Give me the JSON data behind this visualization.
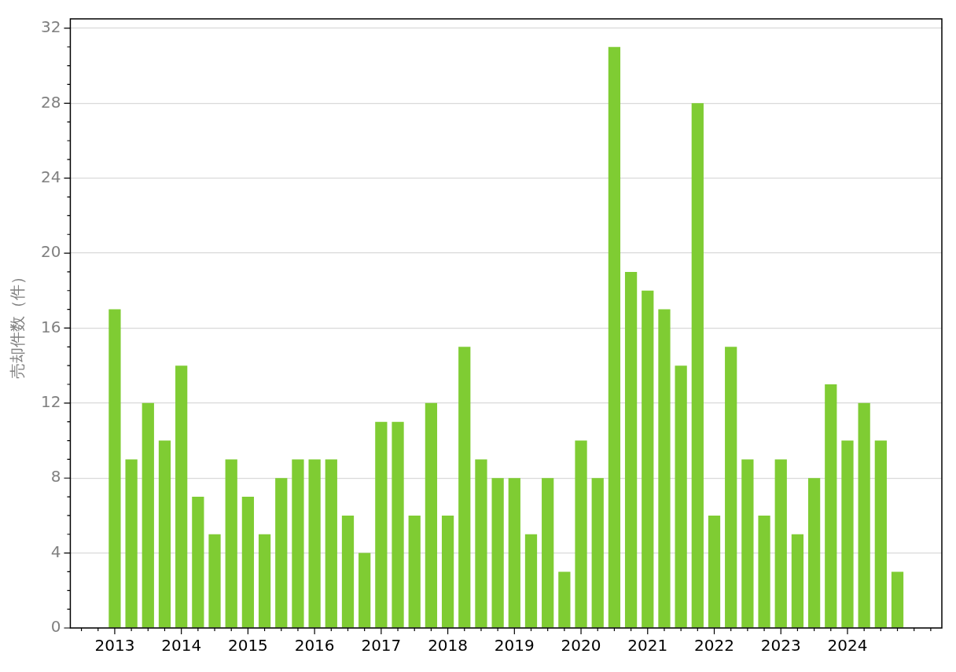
{
  "chart_data": {
    "type": "bar",
    "ylabel": "売却件数（件）",
    "color": "#7fcc33",
    "x": [
      "2013-01",
      "2013-04",
      "2013-07",
      "2013-10",
      "2014-01",
      "2014-04",
      "2014-07",
      "2014-10",
      "2015-01",
      "2015-04",
      "2015-07",
      "2015-10",
      "2016-01",
      "2016-04",
      "2016-07",
      "2016-10",
      "2017-01",
      "2017-04",
      "2017-07",
      "2017-10",
      "2018-01",
      "2018-04",
      "2018-07",
      "2018-10",
      "2019-01",
      "2019-04",
      "2019-07",
      "2019-10",
      "2020-01",
      "2020-04",
      "2020-07",
      "2020-10",
      "2021-01",
      "2021-04",
      "2021-07",
      "2021-10",
      "2022-01",
      "2022-04",
      "2022-07",
      "2022-10",
      "2023-01",
      "2023-04",
      "2023-07",
      "2023-10",
      "2024-01",
      "2024-04",
      "2024-07",
      "2024-10"
    ],
    "values": [
      17,
      9,
      12,
      10,
      14,
      7,
      5,
      9,
      7,
      5,
      8,
      9,
      9,
      9,
      6,
      4,
      11,
      11,
      6,
      12,
      6,
      15,
      9,
      8,
      8,
      5,
      8,
      3,
      10,
      8,
      31,
      19,
      18,
      17,
      14,
      28,
      6,
      15,
      9,
      6,
      9,
      5,
      8,
      13,
      10,
      12,
      10,
      3
    ],
    "xlim": [
      "2012-05",
      "2025-06"
    ],
    "xticks": [
      {
        "value": "2012-07",
        "label": null
      },
      {
        "value": "2012-10",
        "label": null
      },
      {
        "value": "2013",
        "label": "2013"
      },
      {
        "value": "2013-04",
        "label": null
      },
      {
        "value": "2013-07",
        "label": null
      },
      {
        "value": "2013-10",
        "label": null
      },
      {
        "value": "2014",
        "label": "2014"
      },
      {
        "value": "2014-04",
        "label": null
      },
      {
        "value": "2014-07",
        "label": null
      },
      {
        "value": "2014-10",
        "label": null
      },
      {
        "value": "2015",
        "label": "2015"
      },
      {
        "value": "2015-04",
        "label": null
      },
      {
        "value": "2015-07",
        "label": null
      },
      {
        "value": "2015-10",
        "label": null
      },
      {
        "value": "2016",
        "label": "2016"
      },
      {
        "value": "2016-04",
        "label": null
      },
      {
        "value": "2016-07",
        "label": null
      },
      {
        "value": "2016-10",
        "label": null
      },
      {
        "value": "2017",
        "label": "2017"
      },
      {
        "value": "2017-04",
        "label": null
      },
      {
        "value": "2017-07",
        "label": null
      },
      {
        "value": "2017-10",
        "label": null
      },
      {
        "value": "2018",
        "label": "2018"
      },
      {
        "value": "2018-04",
        "label": null
      },
      {
        "value": "2018-07",
        "label": null
      },
      {
        "value": "2018-10",
        "label": null
      },
      {
        "value": "2019",
        "label": "2019"
      },
      {
        "value": "2019-04",
        "label": null
      },
      {
        "value": "2019-07",
        "label": null
      },
      {
        "value": "2019-10",
        "label": null
      },
      {
        "value": "2020",
        "label": "2020"
      },
      {
        "value": "2020-04",
        "label": null
      },
      {
        "value": "2020-07",
        "label": null
      },
      {
        "value": "2020-10",
        "label": null
      },
      {
        "value": "2021",
        "label": "2021"
      },
      {
        "value": "2021-04",
        "label": null
      },
      {
        "value": "2021-07",
        "label": null
      },
      {
        "value": "2021-10",
        "label": null
      },
      {
        "value": "2022",
        "label": "2022"
      },
      {
        "value": "2022-04",
        "label": null
      },
      {
        "value": "2022-07",
        "label": null
      },
      {
        "value": "2022-10",
        "label": null
      },
      {
        "value": "2023",
        "label": "2023"
      },
      {
        "value": "2023-04",
        "label": null
      },
      {
        "value": "2023-07",
        "label": null
      },
      {
        "value": "2023-10",
        "label": null
      },
      {
        "value": "2024",
        "label": "2024"
      },
      {
        "value": "2024-04",
        "label": null
      },
      {
        "value": "2024-07",
        "label": null
      },
      {
        "value": "2024-10",
        "label": null
      },
      {
        "value": "2025",
        "label": null
      },
      {
        "value": "2025-04",
        "label": null
      }
    ],
    "ylim": [
      0,
      32.5
    ],
    "yticks": [
      0,
      {
        "value": 1,
        "label": null
      },
      {
        "value": 2,
        "label": null
      },
      {
        "value": 3,
        "label": null
      },
      4,
      {
        "value": 5,
        "label": null
      },
      {
        "value": 6,
        "label": null
      },
      {
        "value": 7,
        "label": null
      },
      8,
      {
        "value": 9,
        "label": null
      },
      {
        "value": 10,
        "label": null
      },
      {
        "value": 11,
        "label": null
      },
      12,
      {
        "value": 13,
        "label": null
      },
      {
        "value": 14,
        "label": null
      },
      {
        "value": 15,
        "label": null
      },
      16,
      {
        "value": 17,
        "label": null
      },
      {
        "value": 18,
        "label": null
      },
      {
        "value": 19,
        "label": null
      },
      20,
      {
        "value": 21,
        "label": null
      },
      {
        "value": 22,
        "label": null
      },
      {
        "value": 23,
        "label": null
      },
      24,
      {
        "value": 25,
        "label": null
      },
      {
        "value": 26,
        "label": null
      },
      {
        "value": 27,
        "label": null
      },
      28,
      {
        "value": 29,
        "label": null
      },
      {
        "value": 30,
        "label": null
      },
      {
        "value": 31,
        "label": null
      },
      32
    ],
    "grid": "y",
    "legend": false
  }
}
